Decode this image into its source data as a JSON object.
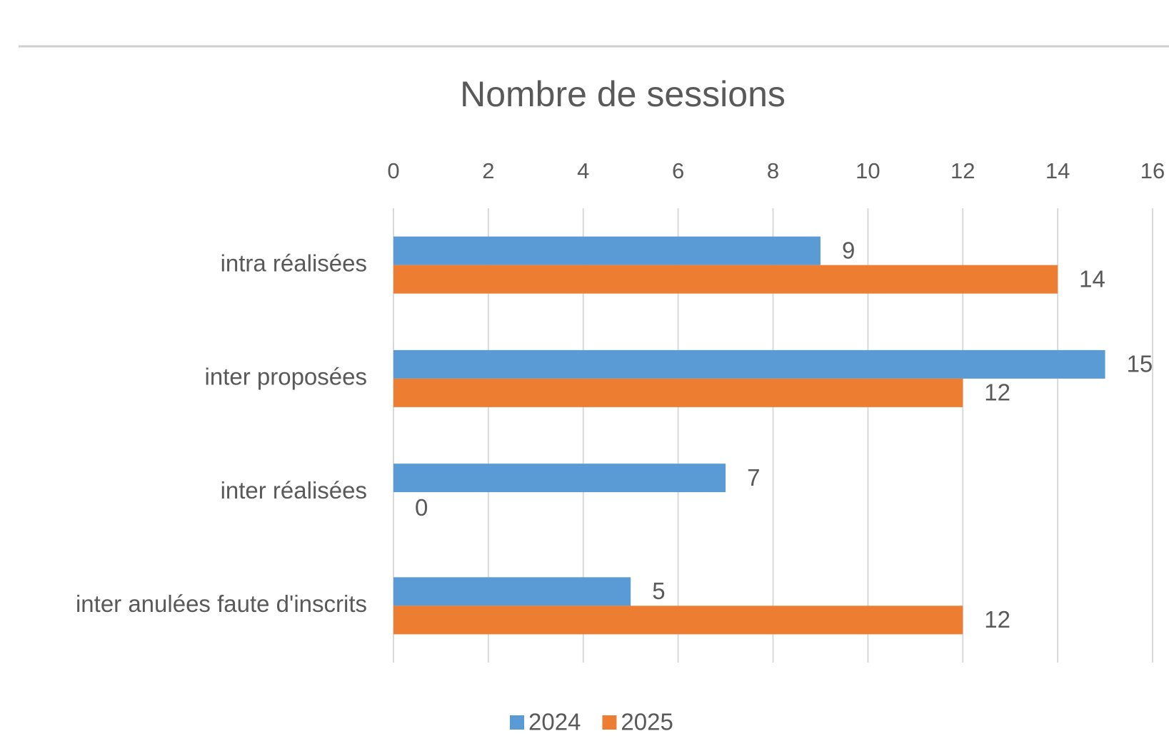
{
  "chart_data": {
    "type": "bar",
    "orientation": "horizontal",
    "title": "Nombre de sessions",
    "categories": [
      "intra réalisées",
      "inter proposées",
      "inter réalisées",
      "inter anulées faute d'inscrits"
    ],
    "series": [
      {
        "name": "2024",
        "color": "#5b9bd5",
        "values": [
          9,
          15,
          7,
          5
        ]
      },
      {
        "name": "2025",
        "color": "#ed7d31",
        "values": [
          14,
          12,
          0,
          12
        ]
      }
    ],
    "xlim": [
      0,
      16
    ],
    "xticks": [
      0,
      2,
      4,
      6,
      8,
      10,
      12,
      14,
      16
    ],
    "grid": true,
    "legend": "bottom",
    "data_labels": true
  }
}
